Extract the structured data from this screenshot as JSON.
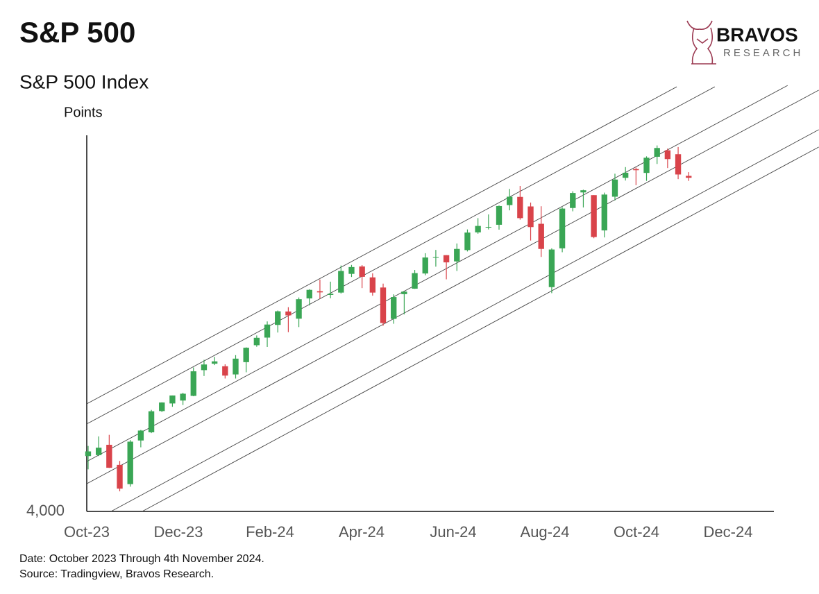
{
  "chart_data": {
    "type": "candlestick",
    "title": "S&P 500",
    "subtitle": "S&P 500 Index",
    "y_label": "Points",
    "x": [
      0.03,
      0.26,
      0.49,
      0.72,
      0.95,
      1.18,
      1.41,
      1.64,
      1.87,
      2.1,
      2.33,
      2.56,
      2.79,
      3.02,
      3.25,
      3.48,
      3.71,
      3.94,
      4.17,
      4.4,
      4.63,
      4.86,
      5.09,
      5.32,
      5.55,
      5.78,
      6.01,
      6.24,
      6.47,
      6.7,
      6.93,
      7.16,
      7.39,
      7.62,
      7.85,
      8.08,
      8.31,
      8.54,
      8.77,
      9.0,
      9.23,
      9.46,
      9.69,
      9.92,
      10.15,
      10.38,
      10.61,
      10.84,
      11.07,
      11.3,
      11.53,
      11.76,
      11.99,
      12.22,
      12.45,
      12.68,
      12.91,
      13.14
    ],
    "open": [
      4284,
      4289,
      4342,
      4239,
      4140,
      4364,
      4406,
      4515,
      4554,
      4569,
      4593,
      4725,
      4758,
      4745,
      4703,
      4766,
      4853,
      4892,
      4957,
      5026,
      4989,
      5093,
      5130,
      5111,
      5123,
      5219,
      5257,
      5201,
      5149,
      4988,
      5115,
      5143,
      5221,
      5305,
      5315,
      5283,
      5341,
      5432,
      5460,
      5471,
      5572,
      5614,
      5565,
      5476,
      5151,
      5350,
      5557,
      5637,
      5623,
      5442,
      5615,
      5712,
      5757,
      5737,
      5820,
      5853,
      5833,
      5722
    ],
    "high": [
      4336,
      4385,
      4393,
      4259,
      4366,
      4418,
      4521,
      4560,
      4595,
      4609,
      4739,
      4778,
      4793,
      4755,
      4802,
      4842,
      4903,
      4975,
      5031,
      5048,
      5098,
      5140,
      5190,
      5179,
      5262,
      5265,
      5264,
      5222,
      5169,
      5114,
      5128,
      5239,
      5325,
      5342,
      5315,
      5375,
      5447,
      5505,
      5524,
      5570,
      5655,
      5670,
      5585,
      5566,
      5350,
      5561,
      5643,
      5651,
      5623,
      5636,
      5733,
      5767,
      5765,
      5822,
      5878,
      5862,
      5870,
      5741
    ],
    "low": [
      4216,
      4284,
      4223,
      4103,
      4127,
      4329,
      4402,
      4510,
      4537,
      4546,
      4591,
      4695,
      4751,
      4682,
      4682,
      4714,
      4845,
      4844,
      4918,
      4920,
      4946,
      5057,
      5092,
      5094,
      5118,
      5203,
      5146,
      5107,
      4953,
      4963,
      5011,
      5142,
      5212,
      5256,
      5191,
      5234,
      5334,
      5425,
      5447,
      5446,
      5545,
      5497,
      5390,
      5306,
      5120,
      5330,
      5540,
      5560,
      5402,
      5406,
      5596,
      5698,
      5674,
      5696,
      5783,
      5762,
      5705,
      5696
    ],
    "close": [
      4308,
      4327,
      4224,
      4117,
      4358,
      4415,
      4514,
      4559,
      4595,
      4604,
      4719,
      4754,
      4770,
      4697,
      4784,
      4840,
      4891,
      4959,
      5027,
      5006,
      5089,
      5137,
      5124,
      5117,
      5234,
      5254,
      5204,
      5123,
      4967,
      5100,
      5128,
      5223,
      5303,
      5305,
      5278,
      5347,
      5431,
      5465,
      5460,
      5567,
      5615,
      5505,
      5459,
      5347,
      5344,
      5554,
      5634,
      5648,
      5408,
      5626,
      5703,
      5738,
      5751,
      5815,
      5865,
      5808,
      5729,
      5712
    ],
    "up_color": "#3aa655",
    "down_color": "#d9434a",
    "xlim": [
      0,
      15
    ],
    "xticks": [
      {
        "value": 0,
        "label": "Oct-23"
      },
      {
        "value": 2,
        "label": "Dec-23"
      },
      {
        "value": 4,
        "label": "Feb-24"
      },
      {
        "value": 6,
        "label": "Apr-24"
      },
      {
        "value": 8,
        "label": "Jun-24"
      },
      {
        "value": 10,
        "label": "Aug-24"
      },
      {
        "value": 12,
        "label": "Oct-24"
      },
      {
        "value": 14,
        "label": "Dec-24"
      }
    ],
    "ylim": [
      4000,
      5930
    ],
    "yticks": [
      {
        "value": 4000,
        "label": "4,000"
      }
    ],
    "channel_color": "#444",
    "channels": [
      {
        "x": [
          0,
          12.88
        ],
        "y": [
          4552,
          6179
        ]
      },
      {
        "x": [
          0,
          13.71
        ],
        "y": [
          4449,
          6179
        ]
      },
      {
        "x": [
          0,
          15.3
        ],
        "y": [
          4256,
          6186
        ]
      },
      {
        "x": [
          0,
          15.98
        ],
        "y": [
          4142,
          6162
        ]
      },
      {
        "x": [
          0.53,
          15.98
        ],
        "y": [
          4000,
          5959
        ]
      },
      {
        "x": [
          1.21,
          15.98
        ],
        "y": [
          4000,
          5870
        ]
      }
    ]
  },
  "logo": {
    "name": "BRAVOS",
    "tagline": "RESEARCH"
  },
  "footer": [
    "Date: October 2023 Through 4th November 2024.",
    "Source: Tradingview, Bravos Research."
  ]
}
